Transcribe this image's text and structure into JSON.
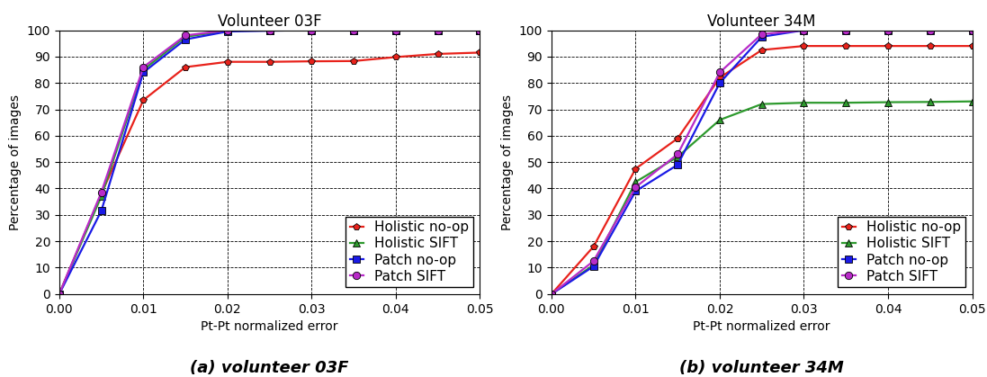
{
  "chart_data": [
    {
      "type": "line",
      "title": "Volunteer 03F",
      "caption": "(a) volunteer 03F",
      "x_label": "Pt-Pt normalized error",
      "y_label": "Percentage of images",
      "x": [
        0.0,
        0.005,
        0.01,
        0.015,
        0.02,
        0.025,
        0.03,
        0.035,
        0.04,
        0.045,
        0.05
      ],
      "series": [
        {
          "name": "Holistic no-op",
          "color": "#e8221b",
          "marker": "pentagon",
          "values": [
            0,
            38,
            73.5,
            86,
            88,
            88,
            88.2,
            88.3,
            89.8,
            91,
            91.5
          ]
        },
        {
          "name": "Holistic SIFT",
          "color": "#2e9a2e",
          "marker": "triangle",
          "values": [
            0,
            37,
            85,
            97.5,
            99.8,
            100,
            100,
            100,
            100,
            100,
            100
          ]
        },
        {
          "name": "Patch no-op",
          "color": "#1a1ae6",
          "marker": "square",
          "values": [
            0,
            31.5,
            84,
            96.5,
            99.5,
            99.8,
            100,
            100,
            100,
            100,
            100
          ]
        },
        {
          "name": "Patch SIFT",
          "color": "#b82bc8",
          "marker": "circle",
          "values": [
            0,
            38.5,
            86,
            98,
            100,
            100,
            100,
            100,
            100,
            100,
            100
          ]
        }
      ],
      "xlim": [
        0.0,
        0.05
      ],
      "xticks": [
        {
          "value": 0.0,
          "label": "0.00"
        },
        {
          "value": 0.01,
          "label": "0.01"
        },
        {
          "value": 0.02,
          "label": "0.02"
        },
        {
          "value": 0.03,
          "label": "0.03"
        },
        {
          "value": 0.04,
          "label": "0.04"
        },
        {
          "value": 0.05,
          "label": "0.05"
        }
      ],
      "ylim": [
        0,
        100
      ],
      "yticks": [
        0,
        10,
        20,
        30,
        40,
        50,
        60,
        70,
        80,
        90,
        100
      ],
      "grid": true,
      "legend": "lower right"
    },
    {
      "type": "line",
      "title": "Volunteer 34M",
      "caption": "(b) volunteer 34M",
      "x_label": "Pt-Pt normalized error",
      "y_label": "Percentage of images",
      "x": [
        0.0,
        0.005,
        0.01,
        0.015,
        0.02,
        0.025,
        0.03,
        0.035,
        0.04,
        0.045,
        0.05
      ],
      "series": [
        {
          "name": "Holistic no-op",
          "color": "#e8221b",
          "marker": "pentagon",
          "values": [
            0,
            18,
            47.5,
            59,
            82,
            92.5,
            94,
            94,
            94,
            94,
            94
          ]
        },
        {
          "name": "Holistic SIFT",
          "color": "#2e9a2e",
          "marker": "triangle",
          "values": [
            0,
            11,
            42.5,
            52,
            66,
            72,
            72.5,
            72.5,
            72.7,
            72.8,
            73
          ]
        },
        {
          "name": "Patch no-op",
          "color": "#1a1ae6",
          "marker": "square",
          "values": [
            0,
            10.5,
            39,
            49,
            80,
            97.5,
            100,
            100,
            100,
            100,
            100
          ]
        },
        {
          "name": "Patch SIFT",
          "color": "#b82bc8",
          "marker": "circle",
          "values": [
            0,
            12.5,
            40.5,
            53,
            84,
            98.5,
            100,
            100,
            100,
            100,
            100
          ]
        }
      ],
      "xlim": [
        0.0,
        0.05
      ],
      "xticks": [
        {
          "value": 0.0,
          "label": "0.00"
        },
        {
          "value": 0.01,
          "label": "0.01"
        },
        {
          "value": 0.02,
          "label": "0.02"
        },
        {
          "value": 0.03,
          "label": "0.03"
        },
        {
          "value": 0.04,
          "label": "0.04"
        },
        {
          "value": 0.05,
          "label": "0.05"
        }
      ],
      "ylim": [
        0,
        100
      ],
      "yticks": [
        0,
        10,
        20,
        30,
        40,
        50,
        60,
        70,
        80,
        90,
        100
      ],
      "grid": true,
      "legend": "lower right"
    }
  ]
}
